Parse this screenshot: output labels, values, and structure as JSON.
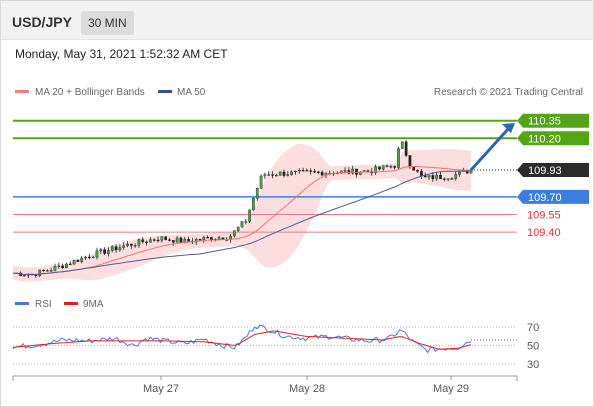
{
  "header": {
    "symbol": "USD/JPY",
    "interval": "30 MIN"
  },
  "datetime": "Monday, May 31, 2021 1:52:32 AM CET",
  "credit": "Research © 2021 Trading Central",
  "colors": {
    "resistance": "#52a515",
    "support": "#3b7ee0",
    "minor": "#e08080",
    "current": "#222222",
    "arrow": "#2a66b0",
    "ma20": "#f07070",
    "ma50": "#4a5f90",
    "band": "#fbd8d8",
    "rsi": "#4a77d4",
    "rsi_ma": "#dd2222"
  },
  "chart_data": [
    {
      "type": "candlestick",
      "legend": [
        {
          "name": "MA 20 + Bollinger Bands",
          "color": "#f08080"
        },
        {
          "name": "MA 50",
          "color": "#35568a"
        }
      ],
      "ylim": [
        109.0,
        110.45
      ],
      "x_ticks": [
        "May 27",
        "May 28",
        "May 29"
      ],
      "levels": [
        {
          "value": "110.35",
          "kind": "resistance"
        },
        {
          "value": "110.20",
          "kind": "resistance"
        },
        {
          "value": "109.93",
          "kind": "current"
        },
        {
          "value": "109.70",
          "kind": "support"
        },
        {
          "value": "109.55",
          "kind": "minor"
        },
        {
          "value": "109.40",
          "kind": "minor"
        }
      ],
      "key_points": [
        {
          "x": 0,
          "y": 109.05
        },
        {
          "x": 15,
          "y": 109.04
        },
        {
          "x": 35,
          "y": 109.1
        },
        {
          "x": 60,
          "y": 109.2
        },
        {
          "x": 90,
          "y": 109.29
        },
        {
          "x": 115,
          "y": 109.35
        },
        {
          "x": 135,
          "y": 109.32
        },
        {
          "x": 155,
          "y": 109.35
        },
        {
          "x": 170,
          "y": 109.36
        },
        {
          "x": 183,
          "y": 109.5
        },
        {
          "x": 190,
          "y": 109.72
        },
        {
          "x": 196,
          "y": 109.89
        },
        {
          "x": 210,
          "y": 109.9
        },
        {
          "x": 250,
          "y": 109.91
        },
        {
          "x": 280,
          "y": 109.92
        },
        {
          "x": 300,
          "y": 109.97
        },
        {
          "x": 305,
          "y": 110.18
        },
        {
          "x": 312,
          "y": 109.98
        },
        {
          "x": 322,
          "y": 109.86
        },
        {
          "x": 345,
          "y": 109.88
        },
        {
          "x": 360,
          "y": 109.93
        }
      ]
    },
    {
      "type": "line",
      "legend": [
        {
          "name": "RSI",
          "color": "#4a77d4"
        },
        {
          "name": "9MA",
          "color": "#dd2222"
        }
      ],
      "ylim": [
        20,
        80
      ],
      "y_ticks": [
        "70",
        "50",
        "30"
      ],
      "rsi_points": [
        {
          "x": 0,
          "y": 48
        },
        {
          "x": 20,
          "y": 51
        },
        {
          "x": 40,
          "y": 56
        },
        {
          "x": 60,
          "y": 55
        },
        {
          "x": 80,
          "y": 58
        },
        {
          "x": 95,
          "y": 50
        },
        {
          "x": 105,
          "y": 58
        },
        {
          "x": 120,
          "y": 55
        },
        {
          "x": 135,
          "y": 52
        },
        {
          "x": 150,
          "y": 57
        },
        {
          "x": 165,
          "y": 50
        },
        {
          "x": 175,
          "y": 48
        },
        {
          "x": 185,
          "y": 62
        },
        {
          "x": 190,
          "y": 72
        },
        {
          "x": 200,
          "y": 68
        },
        {
          "x": 215,
          "y": 60
        },
        {
          "x": 230,
          "y": 58
        },
        {
          "x": 250,
          "y": 60
        },
        {
          "x": 265,
          "y": 57
        },
        {
          "x": 280,
          "y": 55
        },
        {
          "x": 295,
          "y": 57
        },
        {
          "x": 305,
          "y": 67
        },
        {
          "x": 315,
          "y": 53
        },
        {
          "x": 325,
          "y": 45
        },
        {
          "x": 340,
          "y": 47
        },
        {
          "x": 350,
          "y": 48
        },
        {
          "x": 360,
          "y": 56
        }
      ],
      "ma_points": [
        {
          "x": 0,
          "y": 48
        },
        {
          "x": 30,
          "y": 52
        },
        {
          "x": 60,
          "y": 55
        },
        {
          "x": 90,
          "y": 55
        },
        {
          "x": 120,
          "y": 55
        },
        {
          "x": 150,
          "y": 54
        },
        {
          "x": 175,
          "y": 50
        },
        {
          "x": 190,
          "y": 62
        },
        {
          "x": 205,
          "y": 66
        },
        {
          "x": 230,
          "y": 60
        },
        {
          "x": 260,
          "y": 58
        },
        {
          "x": 290,
          "y": 56
        },
        {
          "x": 305,
          "y": 60
        },
        {
          "x": 320,
          "y": 52
        },
        {
          "x": 335,
          "y": 46
        },
        {
          "x": 350,
          "y": 47
        },
        {
          "x": 360,
          "y": 51
        }
      ]
    }
  ]
}
